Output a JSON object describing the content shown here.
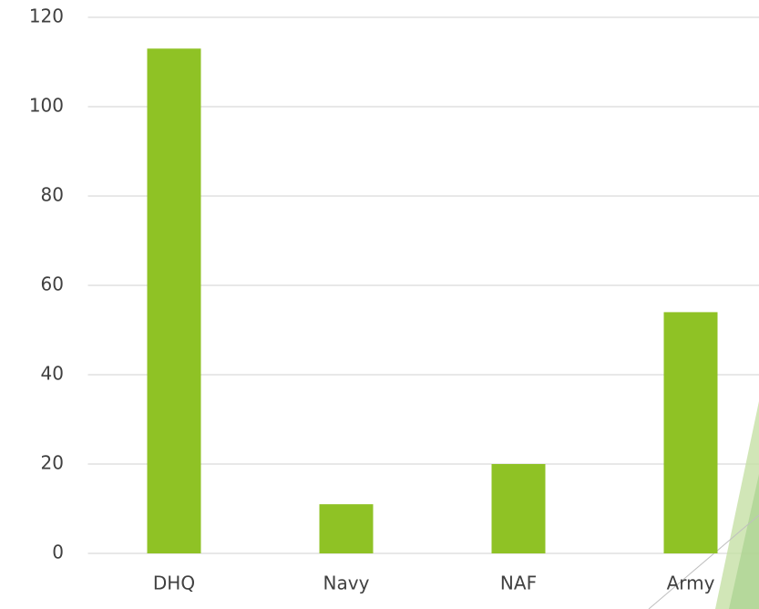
{
  "chart_data": {
    "type": "bar",
    "categories": [
      "DHQ",
      "Navy",
      "NAF",
      "Army"
    ],
    "values": [
      113,
      11,
      20,
      54
    ],
    "color": "#8fc225",
    "ylim": [
      0,
      120
    ],
    "yticks": [
      0,
      20,
      40,
      60,
      80,
      100,
      120
    ],
    "grid": true
  }
}
